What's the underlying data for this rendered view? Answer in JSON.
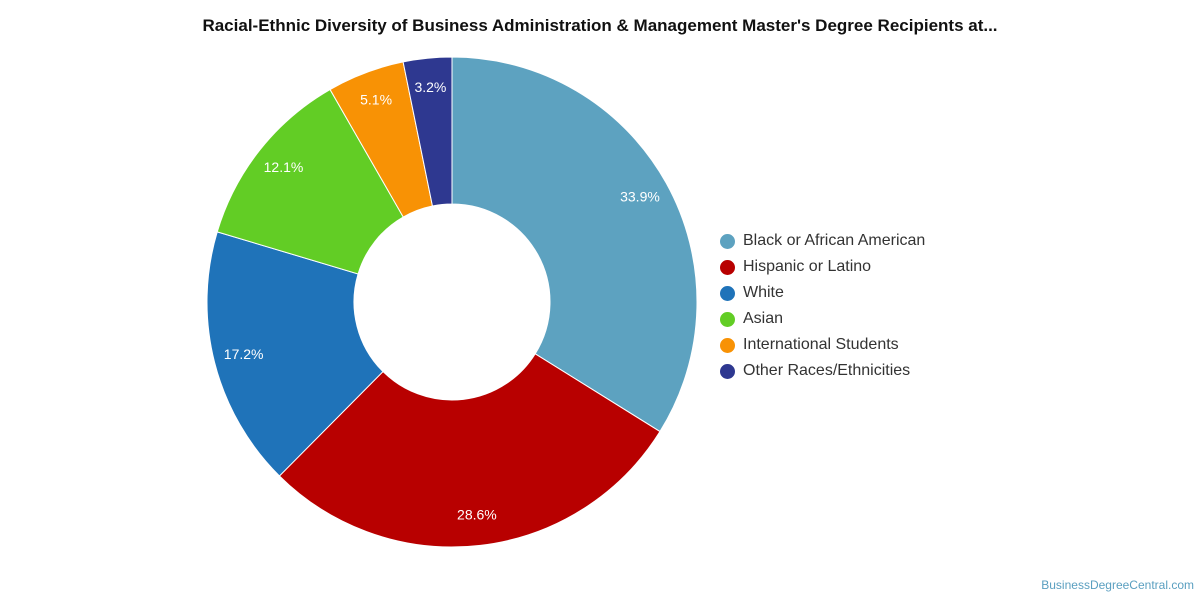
{
  "chart_data": {
    "type": "pie",
    "title": "Racial-Ethnic Diversity of Business Administration & Management Master's Degree Recipients at...",
    "donut": true,
    "start_angle_deg": 0,
    "legend_position": "right",
    "unit": "%",
    "slices": [
      {
        "label": "Black or African American",
        "value": 33.9,
        "display": "33.9%",
        "color": "#5da2c0"
      },
      {
        "label": "Hispanic or Latino",
        "value": 28.6,
        "display": "28.6%",
        "color": "#b80000"
      },
      {
        "label": "White",
        "value": 17.2,
        "display": "17.2%",
        "color": "#1f73b9"
      },
      {
        "label": "Asian",
        "value": 12.1,
        "display": "12.1%",
        "color": "#62cd25"
      },
      {
        "label": "International Students",
        "value": 5.1,
        "display": "5.1%",
        "color": "#f89205"
      },
      {
        "label": "Other Races/Ethnicities",
        "value": 3.2,
        "display": "3.2%",
        "color": "#2e3890"
      }
    ]
  },
  "credit": "BusinessDegreeCentral.com"
}
